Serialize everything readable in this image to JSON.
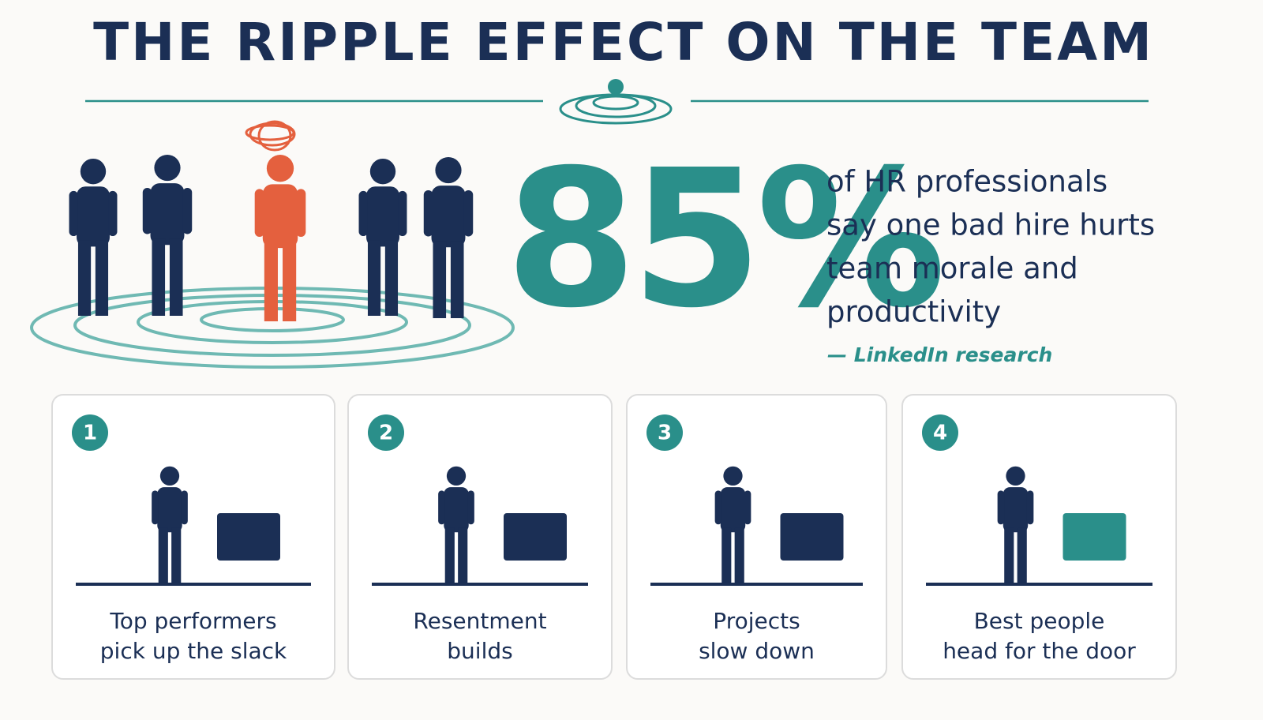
{
  "header": {
    "title": "THE RIPPLE EFFECT ON THE TEAM"
  },
  "stat": {
    "figure": "85%",
    "lines": [
      "of HR professionals",
      "say one bad hire hurts",
      "team morale and",
      "productivity"
    ],
    "source": "— LinkedIn research"
  },
  "cards": [
    {
      "number": "1",
      "lines": [
        "Top performers",
        "pick up the slack"
      ]
    },
    {
      "number": "2",
      "lines": [
        "Resentment",
        "builds"
      ]
    },
    {
      "number": "3",
      "lines": [
        "Projects",
        "slow down"
      ]
    },
    {
      "number": "4",
      "lines": [
        "Best people",
        "head for the door"
      ]
    }
  ]
}
